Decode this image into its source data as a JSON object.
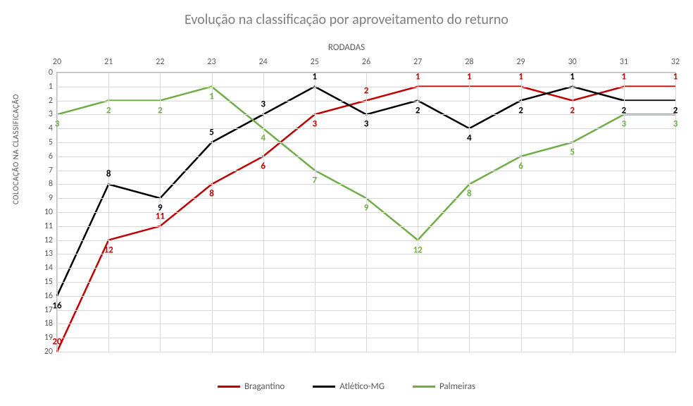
{
  "title": "Evolução na classificação por aproveitamento do returno",
  "x_axis_title": "RODADAS",
  "y_axis_title": "COLOCAÇÃO NA CLASSIFICAÇÃO",
  "x_categories": [
    20,
    21,
    22,
    23,
    24,
    25,
    26,
    27,
    28,
    29,
    30,
    31,
    32
  ],
  "y_ticks": [
    0,
    1,
    2,
    3,
    4,
    5,
    6,
    7,
    8,
    9,
    10,
    11,
    12,
    13,
    14,
    15,
    16,
    17,
    18,
    19,
    20
  ],
  "y_range": [
    0,
    20
  ],
  "grid_color": "#d9d9d9",
  "plot_border_color": "#bfbfbf",
  "background_color": "#ffffff",
  "title_color": "#7f7f7f",
  "tick_color": "#595959",
  "line_width": 2.5,
  "series": [
    {
      "name": "Bragantino",
      "color": "#c00000",
      "values": [
        20,
        12,
        11,
        8,
        6,
        3,
        2,
        1,
        1,
        1,
        2,
        1,
        1
      ],
      "label_dy": [
        -14,
        14,
        -14,
        14,
        14,
        14,
        -14,
        -14,
        -14,
        -14,
        14,
        -14,
        -14
      ]
    },
    {
      "name": "Atlético-MG",
      "color": "#000000",
      "values": [
        16,
        8,
        9,
        5,
        3,
        1,
        3,
        2,
        4,
        2,
        1,
        2,
        2
      ],
      "label_dy": [
        14,
        -14,
        14,
        -14,
        -14,
        -14,
        14,
        14,
        14,
        14,
        -14,
        14,
        14
      ]
    },
    {
      "name": "Palmeiras",
      "color": "#70ad47",
      "values": [
        3,
        2,
        2,
        1,
        4,
        7,
        9,
        12,
        8,
        6,
        5,
        3,
        3
      ],
      "label_dy": [
        14,
        14,
        14,
        14,
        14,
        14,
        14,
        14,
        14,
        14,
        14,
        14,
        14
      ]
    }
  ],
  "legend_labels": {
    "bragantino": "Bragantino",
    "atletico": "Atlético-MG",
    "palmeiras": "Palmeiras"
  }
}
